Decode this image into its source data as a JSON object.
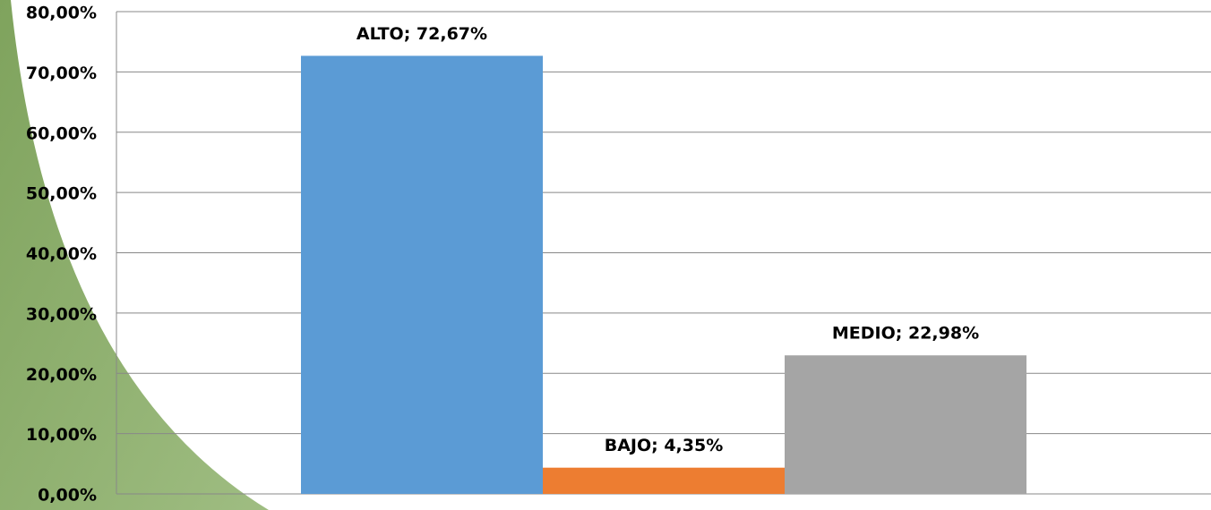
{
  "chart_data": {
    "type": "bar",
    "values": [
      72.67,
      4.35,
      22.98
    ],
    "value_labels": [
      "ALTO; 72,67%",
      "BAJO; 4,35%",
      "MEDIO;  22,98%"
    ],
    "colors": [
      "#5b9bd5",
      "#ed7d31",
      "#a5a5a5"
    ],
    "ylim": [
      0,
      80
    ],
    "yticks": [
      {
        "value": 0,
        "label": "0,00%"
      },
      {
        "value": 10,
        "label": "10,00%"
      },
      {
        "value": 20,
        "label": "20,00%"
      },
      {
        "value": 30,
        "label": "30,00%"
      },
      {
        "value": 40,
        "label": "40,00%"
      },
      {
        "value": 50,
        "label": "50,00%"
      },
      {
        "value": 60,
        "label": "60,00%"
      },
      {
        "value": 70,
        "label": "70,00%"
      },
      {
        "value": 80,
        "label": "80,00%"
      }
    ],
    "grid": true
  }
}
